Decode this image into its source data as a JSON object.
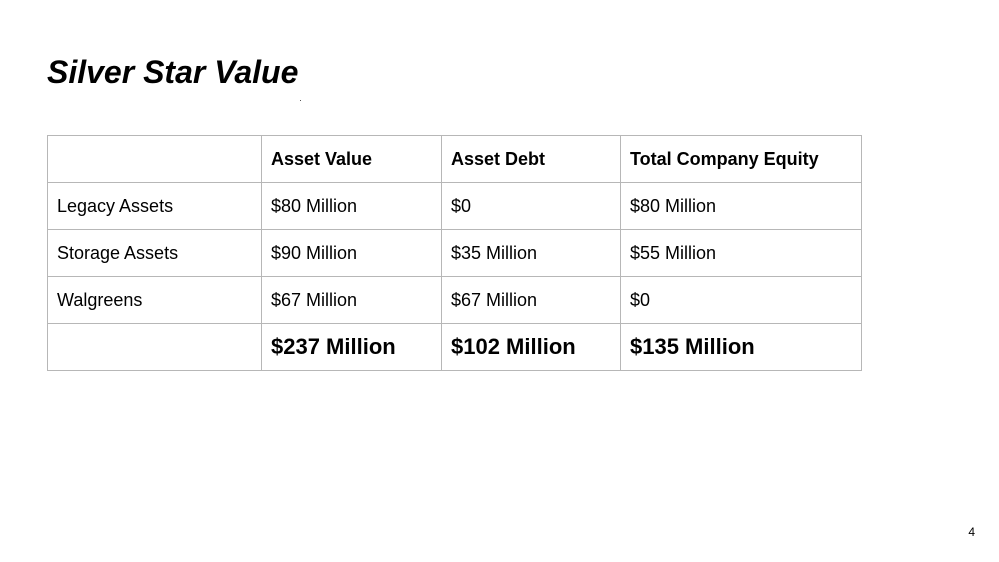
{
  "slide": {
    "title": "Silver Star Value",
    "page_number": "4"
  },
  "table": {
    "headers": [
      "",
      "Asset Value",
      "Asset Debt",
      "Total Company Equity"
    ],
    "rows": [
      [
        "Legacy Assets",
        "$80 Million",
        "$0",
        "$80 Million"
      ],
      [
        "Storage Assets",
        "$90 Million",
        "$35 Million",
        "$55 Million"
      ],
      [
        "Walgreens",
        "$67 Million",
        "$67 Million",
        "$0"
      ]
    ],
    "total_row": [
      "",
      "$237 Million",
      "$102 Million",
      "$135 Million"
    ]
  }
}
